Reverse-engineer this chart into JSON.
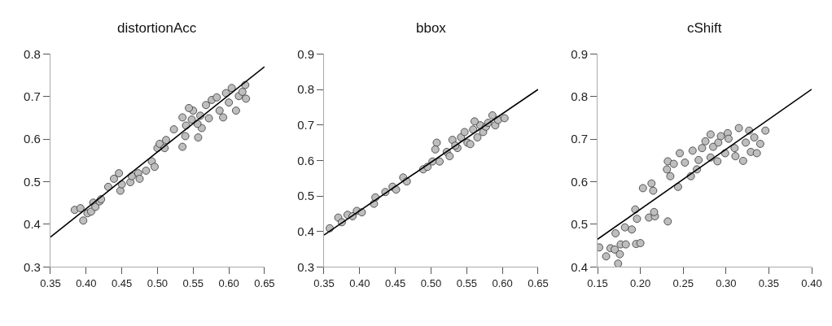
{
  "chart_data": [
    {
      "type": "scatter",
      "title": "distortionAcc",
      "xlim": [
        0.35,
        0.65
      ],
      "xticks": [
        0.35,
        {
          "value": 0.4,
          "label": "0.40"
        },
        0.45,
        {
          "value": 0.5,
          "label": "0.50"
        },
        0.55,
        {
          "value": 0.6,
          "label": "0.60"
        },
        0.65
      ],
      "ylim": [
        0.3,
        0.8
      ],
      "yticks": [
        0.3,
        0.4,
        0.5,
        0.6,
        0.7,
        0.8
      ],
      "marker": "circle",
      "series": [
        {
          "color": "#bebebe",
          "x": [
            0.384,
            0.392,
            0.396,
            0.402,
            0.407,
            0.41,
            0.413,
            0.419,
            0.421,
            0.431,
            0.439,
            0.446,
            0.448,
            0.45,
            0.462,
            0.464,
            0.473,
            0.475,
            0.484,
            0.492,
            0.496,
            0.5,
            0.503,
            0.51,
            0.512,
            0.523,
            0.535,
            0.535,
            0.539,
            0.54,
            0.548,
            0.55,
            0.557,
            0.56,
            0.562,
            0.568,
            0.572,
            0.576,
            0.583,
            0.587,
            0.592,
            0.596,
            0.6,
            0.604,
            0.61,
            0.614,
            0.619,
            0.623,
            0.624,
            0.544,
            0.556
          ],
          "values": [
            0.434,
            0.438,
            0.409,
            0.426,
            0.43,
            0.451,
            0.441,
            0.454,
            0.459,
            0.488,
            0.507,
            0.52,
            0.479,
            0.494,
            0.499,
            0.513,
            0.52,
            0.507,
            0.526,
            0.548,
            0.535,
            0.579,
            0.589,
            0.579,
            0.598,
            0.623,
            0.582,
            0.651,
            0.607,
            0.632,
            0.646,
            0.667,
            0.604,
            0.655,
            0.626,
            0.68,
            0.649,
            0.692,
            0.698,
            0.667,
            0.651,
            0.708,
            0.686,
            0.72,
            0.667,
            0.701,
            0.711,
            0.727,
            0.695,
            0.673,
            0.636
          ]
        },
        {
          "type": "line",
          "color": "#000000",
          "marker": "none",
          "x": [
            0.35,
            0.65
          ],
          "values": [
            0.37,
            0.77
          ]
        }
      ]
    },
    {
      "type": "scatter",
      "title": "bbox",
      "xlim": [
        0.35,
        0.65
      ],
      "xticks": [
        0.35,
        {
          "value": 0.4,
          "label": "0.40"
        },
        0.45,
        {
          "value": 0.5,
          "label": "0.50"
        },
        0.55,
        {
          "value": 0.6,
          "label": "0.60"
        },
        0.65
      ],
      "ylim": [
        0.3,
        0.9
      ],
      "yticks": [
        0.3,
        0.4,
        0.5,
        0.6,
        0.7,
        0.8,
        0.9
      ],
      "marker": "circle",
      "series": [
        {
          "color": "#bebebe",
          "x": [
            0.358,
            0.37,
            0.375,
            0.383,
            0.39,
            0.396,
            0.403,
            0.42,
            0.422,
            0.436,
            0.446,
            0.451,
            0.461,
            0.466,
            0.489,
            0.495,
            0.502,
            0.508,
            0.506,
            0.512,
            0.522,
            0.526,
            0.53,
            0.537,
            0.542,
            0.547,
            0.551,
            0.555,
            0.559,
            0.565,
            0.569,
            0.573,
            0.577,
            0.58,
            0.586,
            0.59,
            0.594,
            0.603,
            0.534,
            0.561
          ],
          "values": [
            0.409,
            0.439,
            0.426,
            0.447,
            0.443,
            0.458,
            0.454,
            0.478,
            0.496,
            0.511,
            0.526,
            0.518,
            0.552,
            0.541,
            0.575,
            0.582,
            0.597,
            0.65,
            0.631,
            0.597,
            0.624,
            0.612,
            0.658,
            0.635,
            0.665,
            0.68,
            0.65,
            0.646,
            0.687,
            0.665,
            0.699,
            0.68,
            0.695,
            0.706,
            0.727,
            0.699,
            0.714,
            0.719,
            0.642,
            0.71
          ]
        },
        {
          "type": "line",
          "color": "#000000",
          "marker": "none",
          "x": [
            0.35,
            0.65
          ],
          "values": [
            0.39,
            0.8
          ]
        }
      ]
    },
    {
      "type": "scatter",
      "title": "cShift",
      "xlim": [
        0.15,
        0.4
      ],
      "xticks": [
        0.15,
        {
          "value": 0.2,
          "label": "0.20"
        },
        0.25,
        {
          "value": 0.3,
          "label": "0.30"
        },
        0.35,
        {
          "value": 0.4,
          "label": "0.40"
        }
      ],
      "ylim": [
        0.4,
        0.9
      ],
      "yticks": [
        0.4,
        0.5,
        0.6,
        0.7,
        0.8,
        0.9
      ],
      "marker": "circle",
      "series": [
        {
          "color": "#bebebe",
          "x": [
            0.152,
            0.16,
            0.165,
            0.17,
            0.171,
            0.174,
            0.176,
            0.177,
            0.183,
            0.182,
            0.19,
            0.194,
            0.196,
            0.195,
            0.2,
            0.203,
            0.21,
            0.213,
            0.215,
            0.217,
            0.216,
            0.232,
            0.231,
            0.232,
            0.235,
            0.239,
            0.244,
            0.246,
            0.252,
            0.259,
            0.261,
            0.266,
            0.268,
            0.272,
            0.276,
            0.282,
            0.282,
            0.285,
            0.29,
            0.291,
            0.294,
            0.299,
            0.302,
            0.303,
            0.31,
            0.311,
            0.315,
            0.32,
            0.323,
            0.327,
            0.329,
            0.333,
            0.336,
            0.34,
            0.346
          ],
          "values": [
            0.446,
            0.425,
            0.444,
            0.441,
            0.479,
            0.408,
            0.43,
            0.453,
            0.453,
            0.493,
            0.488,
            0.535,
            0.513,
            0.454,
            0.456,
            0.585,
            0.516,
            0.596,
            0.579,
            0.519,
            0.529,
            0.507,
            0.629,
            0.648,
            0.613,
            0.642,
            0.588,
            0.667,
            0.645,
            0.613,
            0.673,
            0.629,
            0.651,
            0.679,
            0.695,
            0.657,
            0.711,
            0.682,
            0.648,
            0.692,
            0.707,
            0.667,
            0.714,
            0.701,
            0.679,
            0.66,
            0.726,
            0.649,
            0.692,
            0.72,
            0.67,
            0.704,
            0.667,
            0.689,
            0.72
          ]
        },
        {
          "type": "line",
          "color": "#000000",
          "marker": "none",
          "x": [
            0.15,
            0.4
          ],
          "values": [
            0.465,
            0.817
          ]
        }
      ]
    }
  ]
}
